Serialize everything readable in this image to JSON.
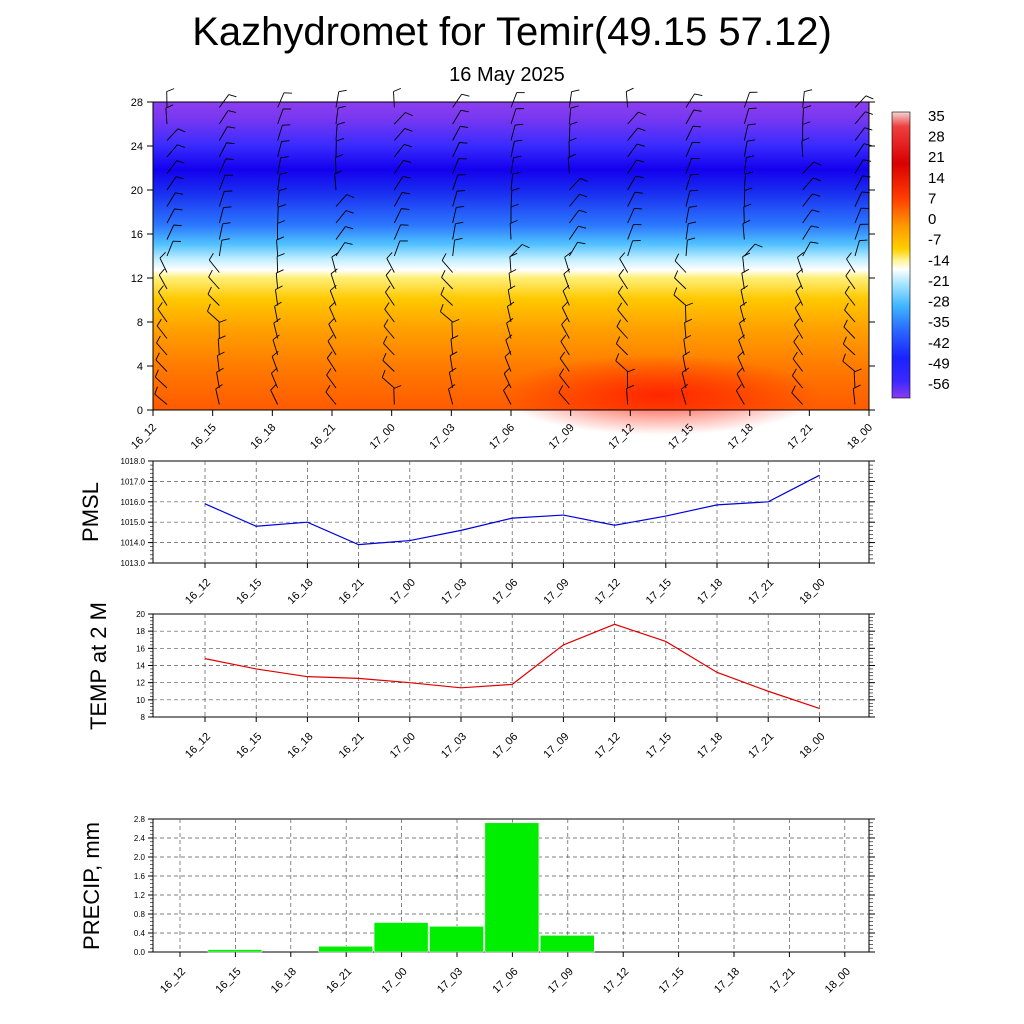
{
  "header": {
    "title": "Kazhydromet for Temir(49.15 57.12)",
    "subtitle": "16 May 2025"
  },
  "colors": {
    "pmsl_line": "#0000dd",
    "temp_line": "#e00000",
    "precip_bar": "#00ee00",
    "wind_barb": "#000000"
  },
  "colorbar": {
    "labels": [
      "35",
      "28",
      "21",
      "14",
      "7",
      "0",
      "-7",
      "-14",
      "-21",
      "-28",
      "-35",
      "-42",
      "-49",
      "-56"
    ]
  },
  "chart_data": [
    {
      "type": "heatmap",
      "id": "upper_air",
      "title": "",
      "xlabel": "",
      "ylabel": "",
      "categories": [
        "16_12",
        "16_15",
        "16_18",
        "16_21",
        "17_00",
        "17_03",
        "17_06",
        "17_09",
        "17_12",
        "17_15",
        "17_18",
        "17_21",
        "18_00"
      ],
      "y_ticks": [
        0,
        4,
        8,
        12,
        16,
        20,
        24,
        28
      ],
      "ylim": [
        0,
        28
      ],
      "value_range": [
        -60,
        36
      ],
      "description_levels_temp": [
        {
          "y": 0,
          "values": [
            10,
            11,
            12,
            11,
            9,
            8,
            10,
            14,
            18,
            16,
            13,
            11,
            9
          ]
        },
        {
          "y": 2,
          "values": [
            7,
            8,
            9,
            8,
            7,
            6,
            7,
            10,
            14,
            12,
            10,
            8,
            7
          ]
        },
        {
          "y": 4,
          "values": [
            3,
            4,
            4,
            4,
            3,
            3,
            3,
            5,
            8,
            7,
            5,
            4,
            3
          ]
        },
        {
          "y": 6,
          "values": [
            -1,
            0,
            0,
            0,
            -1,
            -1,
            -1,
            0,
            2,
            2,
            0,
            0,
            -1
          ]
        },
        {
          "y": 8,
          "values": [
            -4,
            -4,
            -4,
            -4,
            -4,
            -4,
            -4,
            -3,
            -3,
            -3,
            -4,
            -4,
            -4
          ]
        },
        {
          "y": 10,
          "values": [
            -8,
            -8,
            -8,
            -8,
            -8,
            -8,
            -8,
            -8,
            -7,
            -7,
            -7,
            -7,
            -7
          ]
        },
        {
          "y": 12,
          "values": [
            -14,
            -14,
            -13,
            -13,
            -13,
            -12,
            -12,
            -12,
            -11,
            -11,
            -11,
            -11,
            -11
          ]
        },
        {
          "y": 13,
          "values": [
            -20,
            -19,
            -19,
            -18,
            -18,
            -17,
            -17,
            -16,
            -15,
            -15,
            -15,
            -15,
            -15
          ]
        },
        {
          "y": 14,
          "values": [
            -30,
            -29,
            -28,
            -27,
            -26,
            -25,
            -24,
            -23,
            -22,
            -22,
            -22,
            -22,
            -22
          ]
        },
        {
          "y": 16,
          "values": [
            -42,
            -41,
            -40,
            -39,
            -38,
            -37,
            -36,
            -35,
            -34,
            -34,
            -35,
            -36,
            -36
          ]
        },
        {
          "y": 18,
          "values": [
            -52,
            -51,
            -50,
            -49,
            -48,
            -47,
            -46,
            -46,
            -46,
            -46,
            -47,
            -48,
            -48
          ]
        },
        {
          "y": 20,
          "values": [
            -58,
            -57,
            -56,
            -55,
            -54,
            -54,
            -54,
            -54,
            -54,
            -55,
            -56,
            -57,
            -57
          ]
        },
        {
          "y": 22,
          "values": [
            -56,
            -56,
            -55,
            -55,
            -55,
            -55,
            -55,
            -55,
            -56,
            -56,
            -57,
            -57,
            -57
          ]
        },
        {
          "y": 24,
          "values": [
            -54,
            -54,
            -54,
            -54,
            -54,
            -54,
            -54,
            -54,
            -55,
            -55,
            -55,
            -55,
            -55
          ]
        },
        {
          "y": 26,
          "values": [
            -52,
            -52,
            -52,
            -52,
            -52,
            -52,
            -52,
            -52,
            -53,
            -53,
            -53,
            -53,
            -53
          ]
        },
        {
          "y": 28,
          "values": [
            -50,
            -50,
            -50,
            -50,
            -50,
            -50,
            -50,
            -50,
            -51,
            -51,
            -51,
            -51,
            -51
          ]
        }
      ]
    },
    {
      "type": "line",
      "id": "pmsl",
      "ylabel": "PMSL",
      "categories": [
        "16_12",
        "16_15",
        "16_18",
        "16_21",
        "17_00",
        "17_03",
        "17_06",
        "17_09",
        "17_12",
        "17_15",
        "17_18",
        "17_21",
        "18_00"
      ],
      "values": [
        1015.9,
        1014.8,
        1015.0,
        1013.9,
        1014.1,
        1014.6,
        1015.2,
        1015.35,
        1014.85,
        1015.3,
        1015.85,
        1016.0,
        1017.3
      ],
      "ylim": [
        1013.0,
        1018.0
      ],
      "yticks": [
        "1013.0",
        "1014.0",
        "1015.0",
        "1016.0",
        "1017.0",
        "1018.0"
      ],
      "grid": true
    },
    {
      "type": "line",
      "id": "temp2m",
      "ylabel": "TEMP at 2 M",
      "categories": [
        "16_12",
        "16_15",
        "16_18",
        "16_21",
        "17_00",
        "17_03",
        "17_06",
        "17_09",
        "17_12",
        "17_15",
        "17_18",
        "17_21",
        "18_00"
      ],
      "values": [
        14.8,
        13.6,
        12.7,
        12.5,
        12.0,
        11.4,
        11.8,
        16.4,
        18.8,
        16.8,
        13.2,
        11.0,
        9.0
      ],
      "ylim": [
        8,
        20
      ],
      "yticks": [
        "8",
        "10",
        "12",
        "14",
        "16",
        "18",
        "20"
      ],
      "grid": true
    },
    {
      "type": "bar",
      "id": "precip",
      "ylabel": "PRECIP, mm",
      "categories": [
        "16_12",
        "16_15",
        "16_18",
        "16_21",
        "17_00",
        "17_03",
        "17_06",
        "17_09",
        "17_12",
        "17_15",
        "17_18",
        "17_21",
        "18_00"
      ],
      "values": [
        0,
        0.05,
        0,
        0.12,
        0.62,
        0.54,
        2.72,
        0.35,
        0,
        0,
        0,
        0,
        0
      ],
      "ylim": [
        0,
        2.8
      ],
      "yticks": [
        "0.0",
        "0.4",
        "0.8",
        "1.2",
        "1.6",
        "2.0",
        "2.4",
        "2.8"
      ],
      "grid": true
    }
  ]
}
